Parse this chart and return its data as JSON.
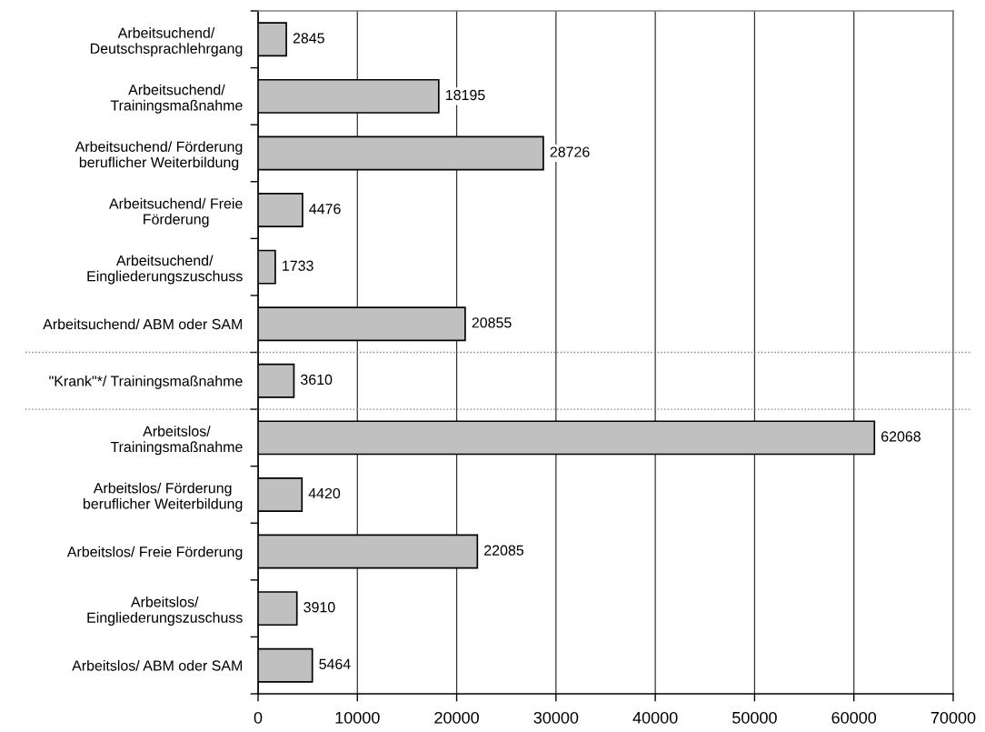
{
  "chart_data": {
    "type": "bar",
    "orientation": "horizontal",
    "categories": [
      "Arbeitsuchend/\nDeutschsprachlehrgang",
      "Arbeitsuchend/\nTrainingsmaßnahme",
      "Arbeitsuchend/ Förderung\nberuflicher Weiterbildung",
      "Arbeitsuchend/ Freie\nFörderung",
      "Arbeitsuchend/\nEingliederungszuschuss",
      "Arbeitsuchend/ ABM oder SAM",
      "\"Krank\"*/ Trainingsmaßnahme",
      "Arbeitslos/\nTrainingsmaßnahme",
      "Arbeitslos/ Förderung\nberuflicher Weiterbildung",
      "Arbeitslos/ Freie Förderung",
      "Arbeitslos/\nEingliederungszuschuss",
      "Arbeitslos/ ABM oder SAM"
    ],
    "values": [
      2845,
      18195,
      28726,
      4476,
      1733,
      20855,
      3610,
      62068,
      4420,
      22085,
      3910,
      5464
    ],
    "color": "#c0c0c0",
    "xlim": [
      0,
      70000
    ],
    "xticks": [
      0,
      10000,
      20000,
      30000,
      40000,
      50000,
      60000,
      70000
    ],
    "grid": "x",
    "data_labels": true
  }
}
